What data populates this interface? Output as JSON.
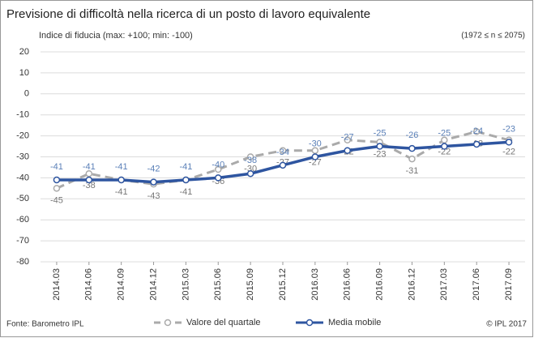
{
  "chart_data": {
    "type": "line",
    "title": "Previsione di difficoltà nella ricerca di un posto di lavoro equivalente",
    "subtitle": "Indice di fiducia (max: +100; min: -100)",
    "sample_note": "(1972 ≤ n ≤ 2075)",
    "source": "Fonte: Barometro IPL",
    "copyright": "© IPL 2017",
    "categories": [
      "2014.03",
      "2014.06",
      "2014.09",
      "2014.12",
      "2015.03",
      "2015.06",
      "2015.09",
      "2015.12",
      "2016.03",
      "2016.06",
      "2016.09",
      "2016.12",
      "2017.03",
      "2017.06",
      "2017.09"
    ],
    "series": [
      {
        "name": "Valore del quartale",
        "color": "#aaaaaa",
        "dashed": true,
        "label_color": "#777777",
        "values": [
          -45,
          -38,
          -41,
          -43,
          -41,
          -36,
          -30,
          -27,
          -27,
          -22,
          -23,
          -31,
          -22,
          -18,
          -22
        ]
      },
      {
        "name": "Media mobile",
        "color": "#2e55a0",
        "dashed": false,
        "label_color": "#5b80b8",
        "values": [
          -41,
          -41,
          -41,
          -42,
          -41,
          -40,
          -38,
          -34,
          -30,
          -27,
          -25,
          -26,
          -25,
          -24,
          -23
        ]
      }
    ],
    "ylim": [
      -80,
      20
    ],
    "yticks": [
      20,
      10,
      0,
      -10,
      -20,
      -30,
      -40,
      -50,
      -60,
      -70,
      -80
    ],
    "grid": true
  }
}
